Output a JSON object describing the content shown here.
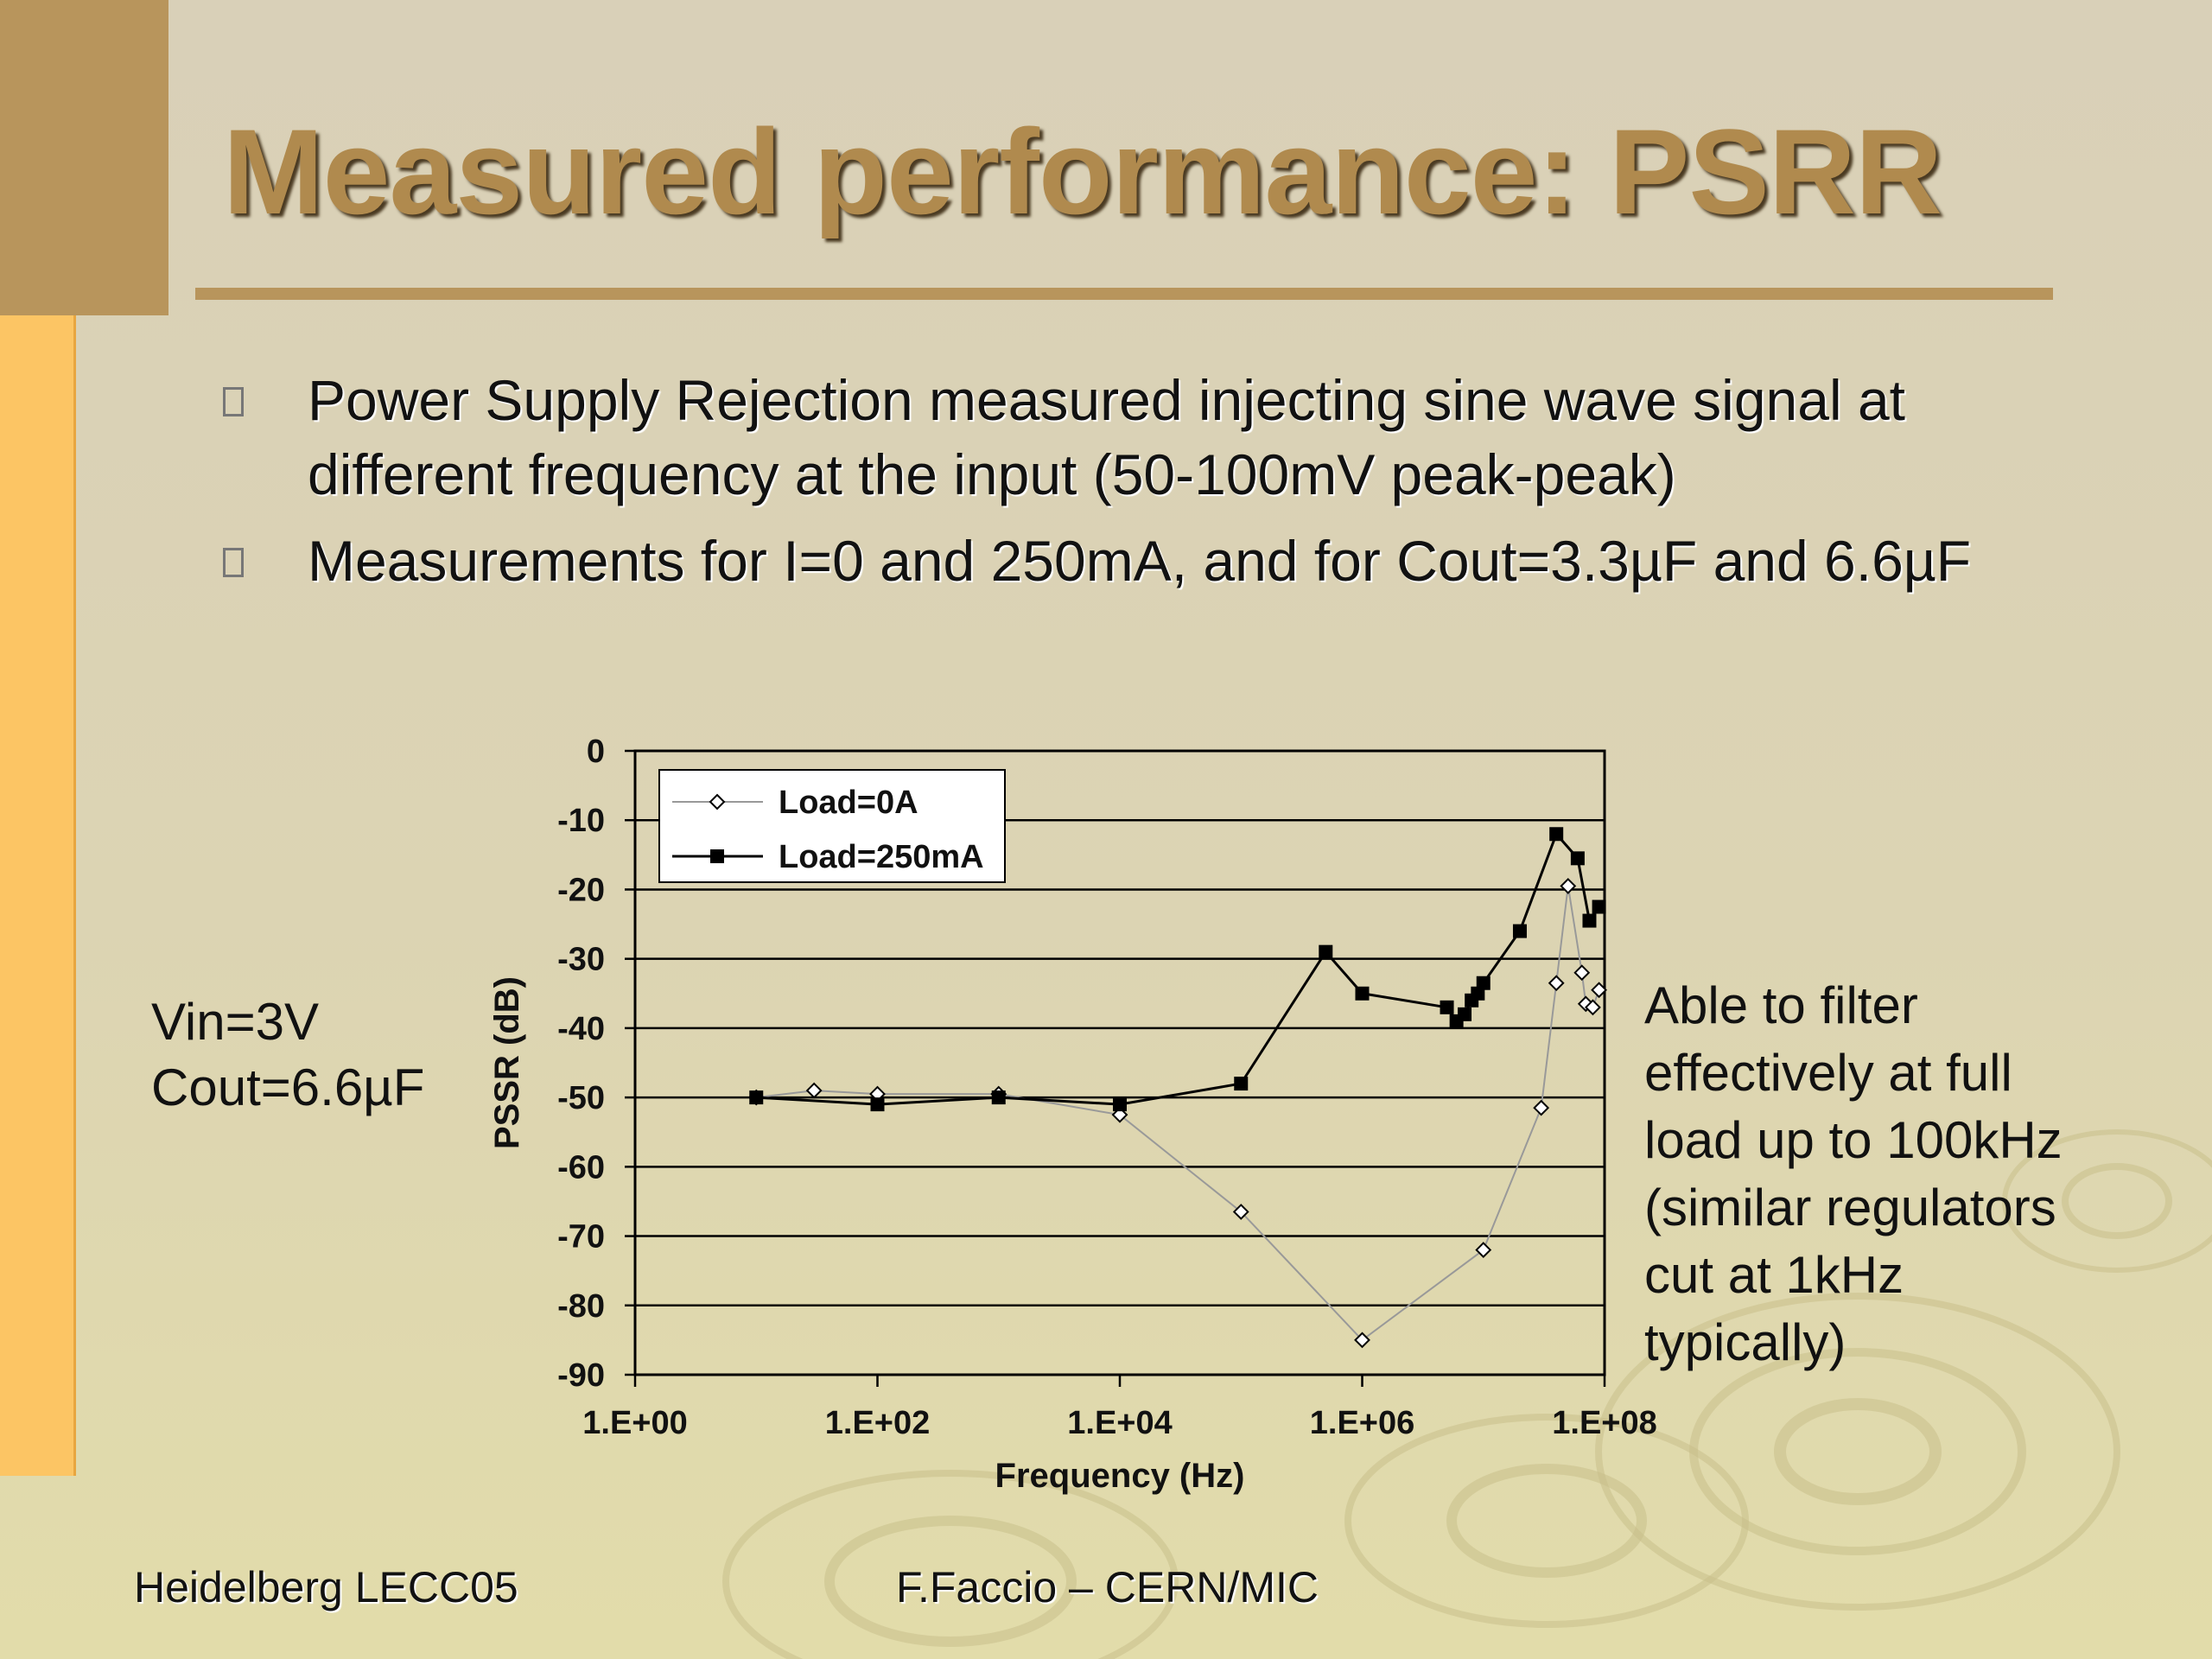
{
  "slide": {
    "title": "Measured performance: PSRR",
    "bullets": [
      "Power Supply Rejection measured injecting sine wave signal at different frequency at the input (50-100mV peak-peak)",
      "Measurements for I=0 and 250mA, and for Cout=3.3µF and 6.6µF"
    ],
    "left_note": [
      "Vin=3V",
      "Cout=6.6µF"
    ],
    "right_note": [
      "Able to filter",
      "effectively at full",
      "load up to 100kHz",
      "(similar regulators",
      "cut at 1kHz",
      "typically)"
    ],
    "footer_left": "Heidelberg LECC05",
    "footer_center": "F.Faccio – CERN/MIC"
  },
  "colors": {
    "title": "#b08a4e",
    "corner": "#b8955c",
    "sidebar": "#fcc564",
    "series_0A": "#999999",
    "series_250mA": "#000000"
  },
  "chart_data": {
    "type": "scatter",
    "xlabel": "Frequency (Hz)",
    "ylabel": "PSSR (dB)",
    "x_scale": "log10",
    "xlim": [
      1,
      100000000
    ],
    "ylim": [
      -90,
      0
    ],
    "x_ticks": [
      1,
      100,
      10000,
      1000000,
      100000000
    ],
    "x_tick_labels": [
      "1.E+00",
      "1.E+02",
      "1.E+04",
      "1.E+06",
      "1.E+08"
    ],
    "y_ticks": [
      0,
      -10,
      -20,
      -30,
      -40,
      -50,
      -60,
      -70,
      -80,
      -90
    ],
    "grid": "horizontal",
    "legend": "top-left",
    "series": [
      {
        "name": "Load=0A",
        "marker": "open-diamond",
        "x": [
          10,
          30,
          100,
          1000,
          10000,
          100000,
          1000000,
          10000000,
          30000000,
          40000000,
          50000000,
          65000000,
          70000000,
          80000000,
          90000000
        ],
        "y": [
          -50,
          -49,
          -49.5,
          -49.5,
          -52.5,
          -66.5,
          -85,
          -72,
          -51.5,
          -33.5,
          -19.5,
          -32,
          -36.5,
          -37,
          -34.5
        ]
      },
      {
        "name": "Load=250mA",
        "marker": "filled-square",
        "x": [
          10,
          100,
          1000,
          10000,
          100000,
          500000,
          1000000,
          5000000,
          6000000,
          7000000,
          8000000,
          9000000,
          10000000,
          20000000,
          40000000,
          60000000,
          75000000,
          90000000
        ],
        "y": [
          -50,
          -51,
          -50,
          -51,
          -48,
          -29,
          -35,
          -37,
          -39,
          -38,
          -36,
          -35,
          -33.5,
          -26,
          -12,
          -15.5,
          -24.5,
          -22.5
        ]
      }
    ]
  }
}
